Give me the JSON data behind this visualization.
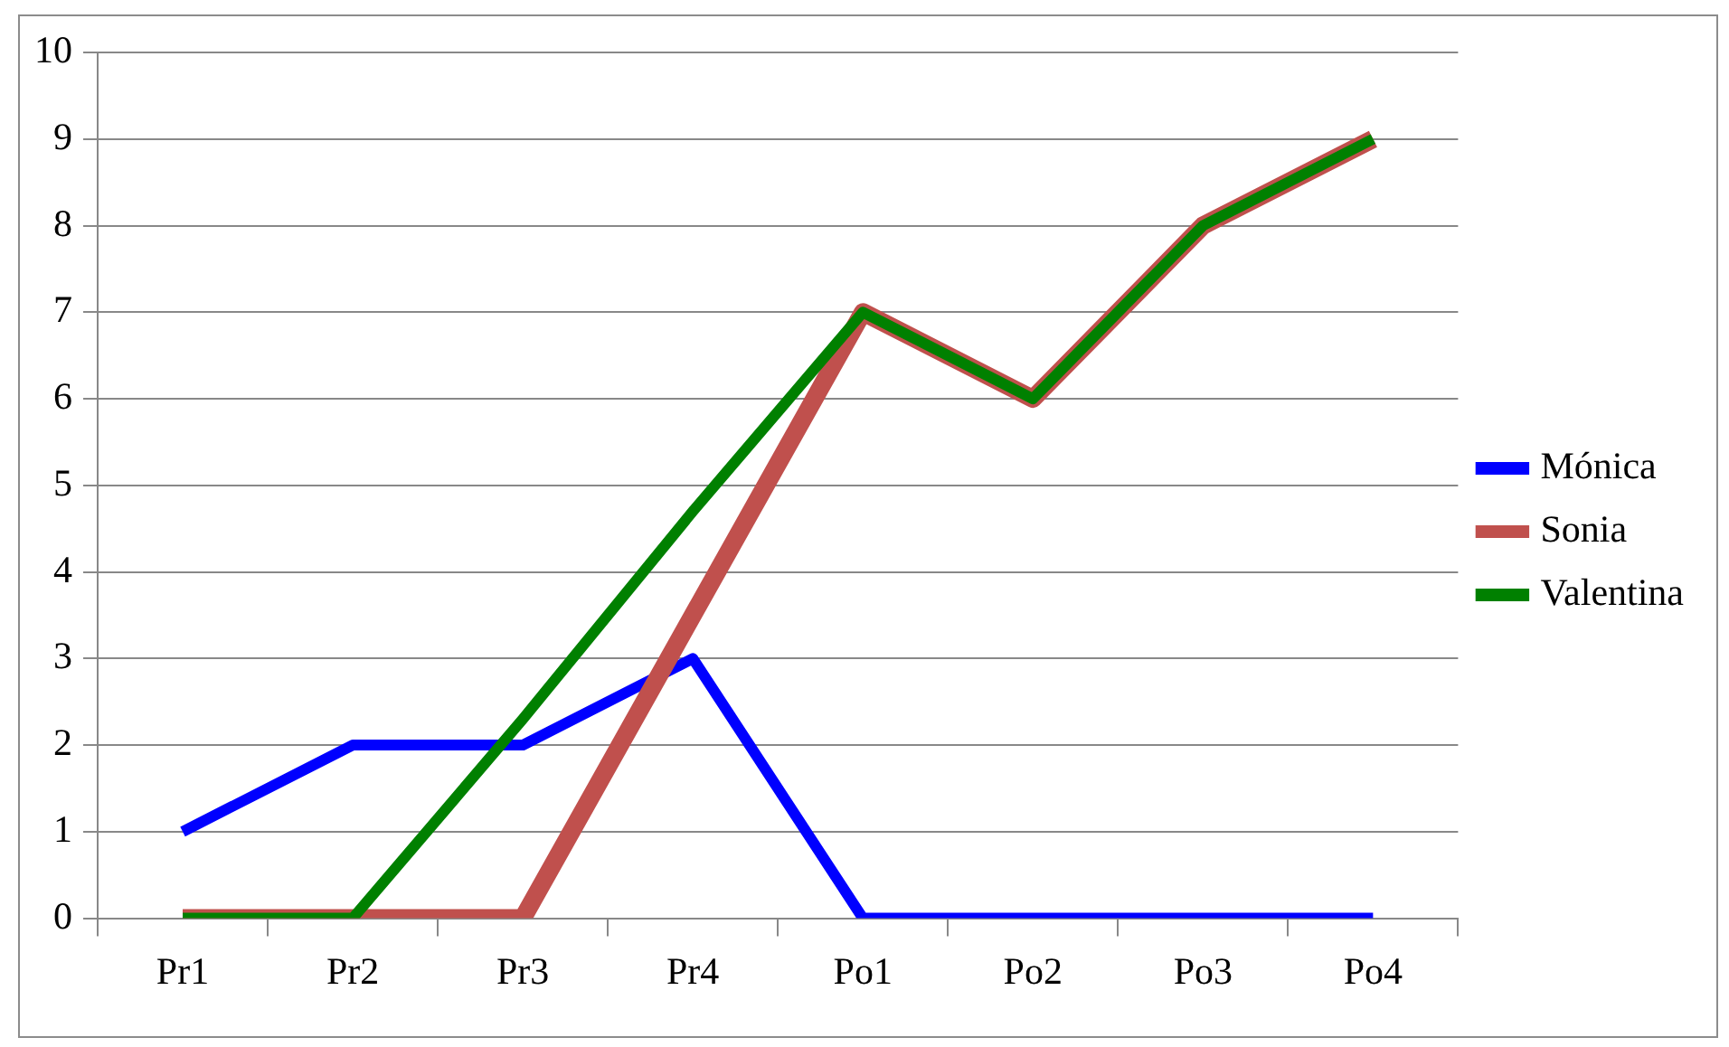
{
  "chart_data": {
    "type": "line",
    "categories": [
      "Pr1",
      "Pr2",
      "Pr3",
      "Pr4",
      "Po1",
      "Po2",
      "Po3",
      "Po4"
    ],
    "series": [
      {
        "name": "Mónica",
        "color": "#0000ff",
        "values": [
          1,
          2,
          2,
          3,
          0,
          0,
          0,
          0
        ]
      },
      {
        "name": "Sonia",
        "color": "#c0504d",
        "values": [
          0,
          0,
          0,
          3.5,
          7,
          6,
          8,
          9
        ]
      },
      {
        "name": "Valentina",
        "color": "#008000",
        "values": [
          0,
          0,
          2.3,
          4.7,
          7,
          6,
          8,
          9
        ]
      }
    ],
    "ylim": [
      0,
      10
    ],
    "yticks": [
      0,
      1,
      2,
      3,
      4,
      5,
      6,
      7,
      8,
      9,
      10
    ],
    "grid": "y",
    "legend": "right",
    "marker": "none",
    "line_style": "solid"
  }
}
